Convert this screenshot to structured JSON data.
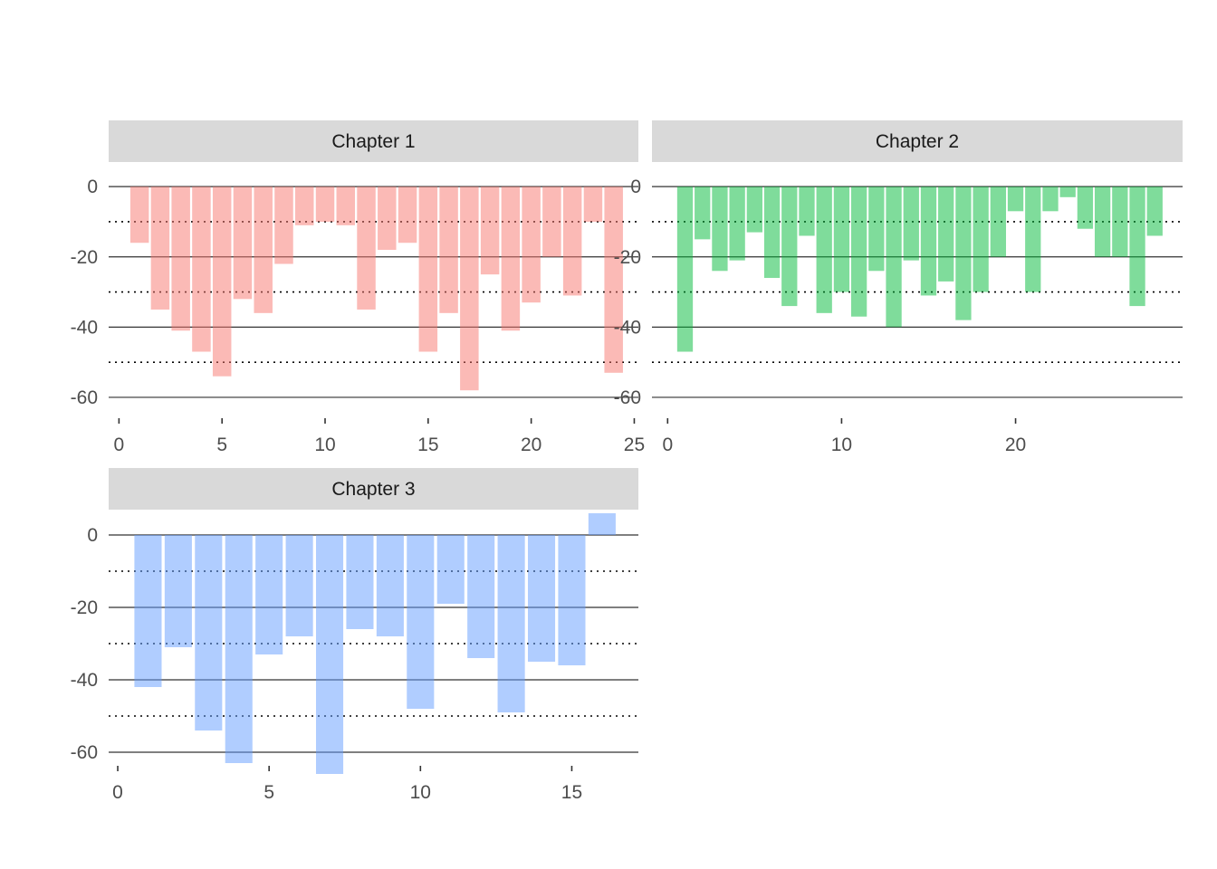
{
  "chart_data": [
    {
      "type": "bar",
      "strip_label": "Chapter 1",
      "strip_color": "#d9d9d9",
      "bar_color": "#f8766d",
      "bar_opacity": 0.5,
      "x": [
        1,
        2,
        3,
        4,
        5,
        6,
        7,
        8,
        9,
        10,
        11,
        12,
        13,
        14,
        15,
        16,
        17,
        18,
        19,
        20,
        21,
        22,
        23,
        24
      ],
      "values": [
        -16,
        -35,
        -41,
        -47,
        -54,
        -32,
        -36,
        -22,
        -11,
        -10,
        -11,
        -35,
        -18,
        -16,
        -47,
        -36,
        -58,
        -25,
        -41,
        -33,
        -20,
        -31,
        -10,
        -53
      ],
      "xlim": [
        -0.5,
        25.2
      ],
      "ylim": [
        -68,
        7
      ],
      "x_ticks": [
        0,
        5,
        10,
        15,
        20,
        25
      ],
      "y_ticks": [
        0,
        -20,
        -40,
        -60
      ],
      "solid_gridlines": [
        0,
        -20,
        -40,
        -60
      ],
      "dotted_gridlines": [
        -10,
        -30,
        -50
      ]
    },
    {
      "type": "bar",
      "strip_label": "Chapter 2",
      "strip_color": "#d9d9d9",
      "bar_color": "#00ba38",
      "bar_opacity": 0.5,
      "x": [
        1,
        2,
        3,
        4,
        5,
        6,
        7,
        8,
        9,
        10,
        11,
        12,
        13,
        14,
        15,
        16,
        17,
        18,
        19,
        20,
        21,
        22,
        23,
        24,
        25,
        26,
        27,
        28
      ],
      "values": [
        -47,
        -15,
        -24,
        -21,
        -13,
        -26,
        -34,
        -14,
        -36,
        -30,
        -37,
        -24,
        -40,
        -21,
        -31,
        -27,
        -38,
        -30,
        -20,
        -7,
        -30,
        -7,
        -3,
        -12,
        -20,
        -20,
        -34,
        -14
      ],
      "xlim": [
        -0.9,
        29.6
      ],
      "ylim": [
        -68,
        7
      ],
      "x_ticks": [
        0,
        10,
        20
      ],
      "y_ticks": [
        0,
        -20,
        -40,
        -60
      ],
      "solid_gridlines": [
        0,
        -20,
        -40,
        -60
      ],
      "dotted_gridlines": [
        -10,
        -30,
        -50
      ]
    },
    {
      "type": "bar",
      "strip_label": "Chapter 3",
      "strip_color": "#d9d9d9",
      "bar_color": "#619cff",
      "bar_opacity": 0.5,
      "x": [
        1,
        2,
        3,
        4,
        5,
        6,
        7,
        8,
        9,
        10,
        11,
        12,
        13,
        14,
        15,
        16
      ],
      "values": [
        -42,
        -31,
        -54,
        -63,
        -33,
        -28,
        -66,
        -26,
        -28,
        -48,
        -19,
        -34,
        -49,
        -35,
        -36,
        6
      ],
      "xlim": [
        -0.3,
        17.2
      ],
      "ylim": [
        -66,
        7
      ],
      "x_ticks": [
        0,
        5,
        10,
        15
      ],
      "y_ticks": [
        0,
        -20,
        -40,
        -60
      ],
      "solid_gridlines": [
        0,
        -20,
        -40,
        -60
      ],
      "dotted_gridlines": [
        -10,
        -30,
        -50
      ]
    }
  ]
}
